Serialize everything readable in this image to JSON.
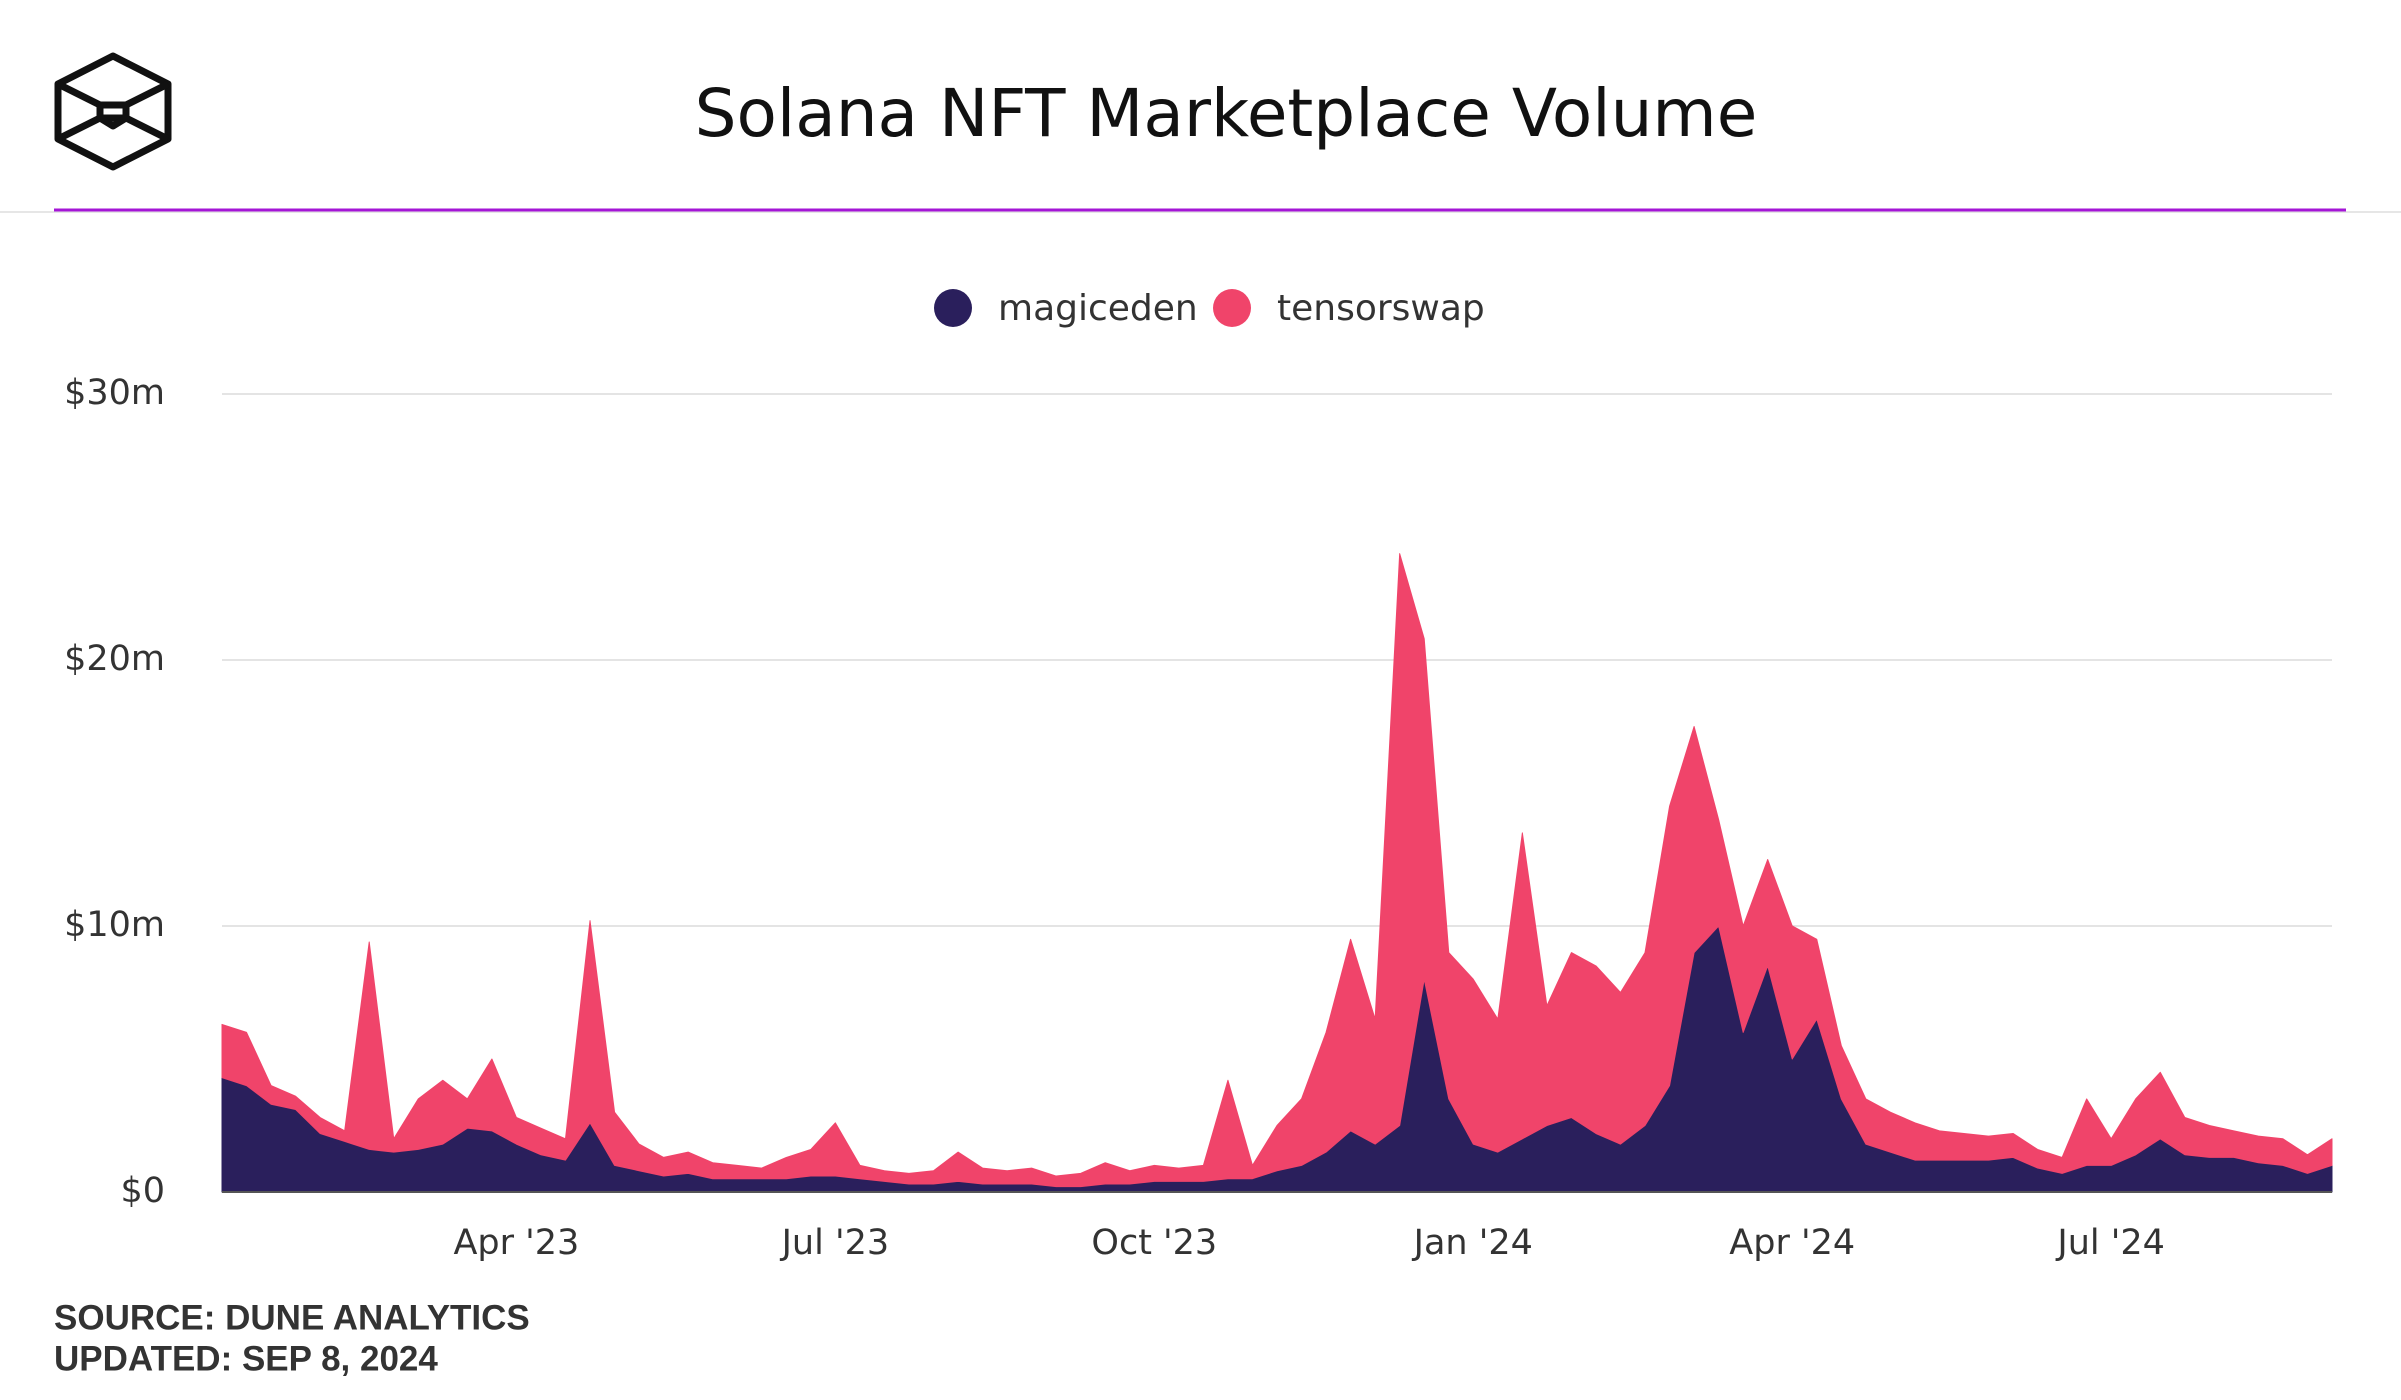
{
  "chart_data": {
    "type": "stacked_area",
    "title": "Solana NFT Marketplace Volume",
    "source": "SOURCE: DUNE ANALYTICS",
    "updated": "UPDATED: SEP 8, 2024",
    "categories": [
      null,
      null,
      null,
      null,
      null,
      null,
      null,
      null,
      null,
      null,
      null,
      null,
      "Apr '23",
      null,
      null,
      null,
      null,
      null,
      null,
      null,
      null,
      null,
      null,
      null,
      null,
      "Jul '23",
      null,
      null,
      null,
      null,
      null,
      null,
      null,
      null,
      null,
      null,
      null,
      null,
      "Oct '23",
      null,
      null,
      null,
      null,
      null,
      null,
      null,
      null,
      null,
      null,
      null,
      null,
      "Jan '24",
      null,
      null,
      null,
      null,
      null,
      null,
      null,
      null,
      null,
      null,
      null,
      null,
      "Apr '24",
      null,
      null,
      null,
      null,
      null,
      null,
      null,
      null,
      null,
      null,
      null,
      null,
      "Jul '24",
      null,
      null,
      null,
      null,
      null,
      null,
      null,
      null,
      null
    ],
    "series": [
      {
        "name": "magiceden",
        "color": "#2a1f5c",
        "values": [
          4.3,
          4.0,
          3.3,
          3.1,
          2.2,
          1.9,
          1.6,
          1.5,
          1.6,
          1.8,
          2.4,
          2.3,
          1.8,
          1.4,
          1.2,
          2.6,
          1.0,
          0.8,
          0.6,
          0.7,
          0.5,
          0.5,
          0.5,
          0.5,
          0.6,
          0.6,
          0.5,
          0.4,
          0.3,
          0.3,
          0.4,
          0.3,
          0.3,
          0.3,
          0.2,
          0.2,
          0.3,
          0.3,
          0.4,
          0.4,
          0.4,
          0.5,
          0.5,
          0.8,
          1.0,
          1.5,
          2.3,
          1.8,
          2.5,
          8.0,
          3.5,
          1.8,
          1.5,
          2.0,
          2.5,
          2.8,
          2.2,
          1.8,
          2.5,
          4.0,
          9.0,
          10.0,
          6.0,
          8.5,
          5.0,
          6.5,
          3.5,
          1.8,
          1.5,
          1.2,
          1.2,
          1.2,
          1.2,
          1.3,
          0.9,
          0.7,
          1.0,
          1.0,
          1.4,
          2.0,
          1.4,
          1.3,
          1.3,
          1.1,
          1.0,
          0.7,
          1.0
        ]
      },
      {
        "name": "tensorswap",
        "color": "#f0446a",
        "values": [
          2.0,
          2.0,
          0.7,
          0.5,
          0.6,
          0.4,
          7.8,
          0.5,
          1.9,
          2.4,
          1.1,
          2.7,
          1.0,
          1.0,
          0.8,
          7.6,
          2.0,
          1.0,
          0.7,
          0.8,
          0.6,
          0.5,
          0.4,
          0.8,
          1.0,
          2.0,
          0.5,
          0.4,
          0.4,
          0.5,
          1.1,
          0.6,
          0.5,
          0.6,
          0.4,
          0.5,
          0.8,
          0.5,
          0.6,
          0.5,
          0.6,
          3.7,
          0.5,
          1.7,
          2.5,
          4.5,
          7.2,
          4.7,
          21.5,
          12.8,
          5.5,
          6.2,
          5.0,
          11.5,
          4.5,
          6.2,
          6.3,
          5.7,
          6.5,
          10.5,
          8.5,
          4.0,
          4.0,
          4.0,
          5.0,
          3.0,
          2.0,
          1.7,
          1.5,
          1.4,
          1.1,
          1.0,
          0.9,
          0.9,
          0.7,
          0.6,
          2.5,
          1.0,
          2.1,
          2.5,
          1.4,
          1.2,
          1.0,
          1.0,
          1.0,
          0.7,
          1.0
        ]
      }
    ],
    "ylim": [
      0,
      30
    ],
    "yticks": [
      {
        "value": 0,
        "label": "$0"
      },
      {
        "value": 10,
        "label": "$10m"
      },
      {
        "value": 20,
        "label": "$20m"
      },
      {
        "value": 30,
        "label": "$30m"
      }
    ],
    "grid": true,
    "legend": "top"
  }
}
